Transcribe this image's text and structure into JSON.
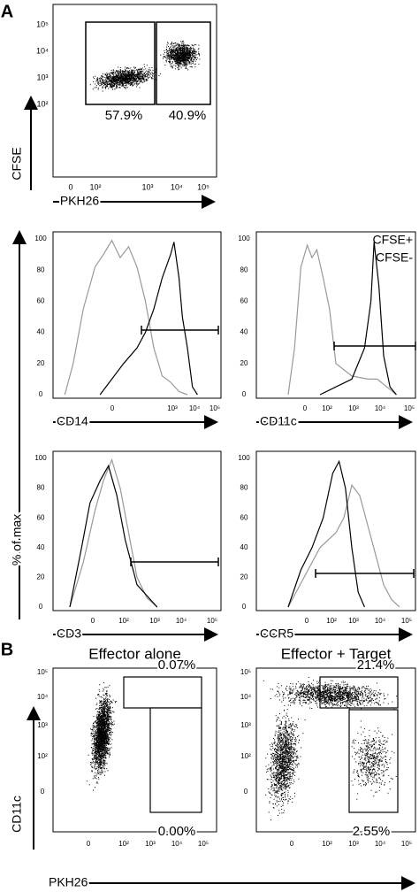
{
  "panel_a": {
    "label": "A",
    "dot_plot": {
      "x_label": "PKH26",
      "y_label": "CFSE",
      "x_ticks": [
        "0",
        "10²",
        "10³",
        "10⁴",
        "10⁵"
      ],
      "y_ticks": [
        "10⁵",
        "10⁴",
        "10³",
        "10²"
      ],
      "gates": [
        "57.9%",
        "40.9%"
      ]
    },
    "histograms": {
      "y_label": "% of max",
      "y_ticks": [
        "100",
        "80",
        "60",
        "40",
        "20",
        "0"
      ],
      "legend": [
        "CFSE+",
        "CFSE-"
      ],
      "panels": [
        {
          "x_label": "CD14",
          "x_ticks": [
            "0",
            "10³",
            "10⁴",
            "10⁵"
          ]
        },
        {
          "x_label": "CD11c",
          "x_ticks": [
            "0",
            "10²",
            "10³",
            "10⁴",
            "10⁵"
          ]
        },
        {
          "x_label": "CD3",
          "x_ticks": [
            "0",
            "10²",
            "10³",
            "10⁴",
            "10⁵"
          ]
        },
        {
          "x_label": "CCR5",
          "x_ticks": [
            "0",
            "10²",
            "10³",
            "10⁴",
            "10⁵"
          ]
        }
      ]
    }
  },
  "panel_b": {
    "label": "B",
    "x_label": "PKH26",
    "y_label": "CD11c",
    "x_ticks": [
      "0",
      "10²",
      "10³",
      "10⁴",
      "10⁵"
    ],
    "y_ticks": [
      "10⁵",
      "10⁴",
      "10³",
      "10²",
      "0"
    ],
    "plots": [
      {
        "title": "Effector alone",
        "gates": [
          "0.07%",
          "0.00%"
        ]
      },
      {
        "title": "Effector + Target",
        "gates": [
          "21.4%",
          "2.55%"
        ]
      }
    ]
  }
}
